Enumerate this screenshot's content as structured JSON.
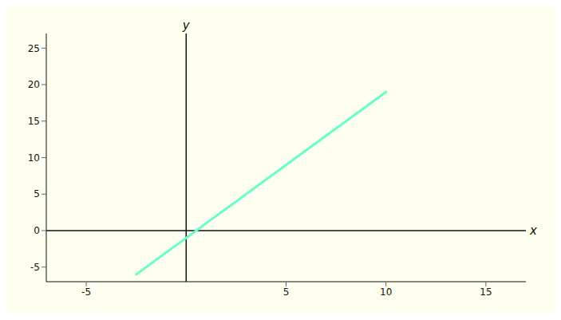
{
  "chart_data": {
    "type": "line",
    "x": [
      -2.5,
      10.0
    ],
    "values": [
      -6,
      19
    ],
    "color": "#66ffcc",
    "xlabel": "x",
    "ylabel": "y",
    "xlim": [
      -7,
      17
    ],
    "ylim": [
      -7,
      27
    ],
    "xticks": [
      -5,
      5,
      10,
      15
    ],
    "yticks": [
      -5,
      5,
      10,
      15,
      20,
      25,
      0
    ],
    "grid": false
  }
}
